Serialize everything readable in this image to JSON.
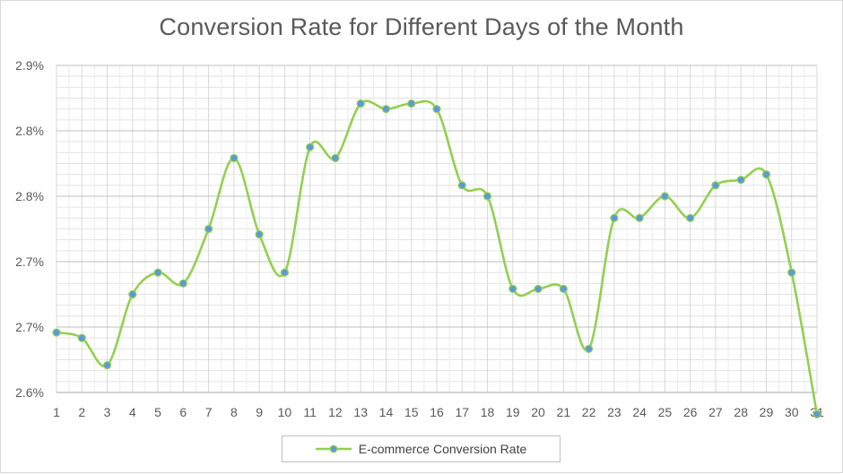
{
  "chart_data": {
    "type": "line",
    "title": "Conversion Rate for Different Days of the Month",
    "xlabel": "",
    "ylabel": "",
    "categories": [
      "1",
      "2",
      "3",
      "4",
      "5",
      "6",
      "7",
      "8",
      "9",
      "10",
      "11",
      "12",
      "13",
      "14",
      "15",
      "16",
      "17",
      "18",
      "19",
      "20",
      "21",
      "22",
      "23",
      "24",
      "25",
      "26",
      "27",
      "28",
      "29",
      "30",
      "31"
    ],
    "y_tick_labels": [
      "2.6%",
      "2.7%",
      "2.7%",
      "2.8%",
      "2.8%",
      "2.9%"
    ],
    "ylim": [
      2.6,
      2.9
    ],
    "series": [
      {
        "name": "E-commerce Conversion Rate",
        "values": [
          2.655,
          2.65,
          2.625,
          2.69,
          2.71,
          2.7,
          2.75,
          2.815,
          2.745,
          2.71,
          2.825,
          2.815,
          2.865,
          2.86,
          2.865,
          2.86,
          2.79,
          2.78,
          2.695,
          2.695,
          2.695,
          2.64,
          2.76,
          2.76,
          2.78,
          2.76,
          2.79,
          2.795,
          2.8,
          2.71,
          2.58
        ]
      }
    ],
    "grid": true,
    "smooth": true,
    "legend_position": "bottom",
    "colors": {
      "line": "#92d050",
      "marker": "#5b9bd5",
      "grid": "#d9d9d9",
      "text": "#595959"
    }
  }
}
